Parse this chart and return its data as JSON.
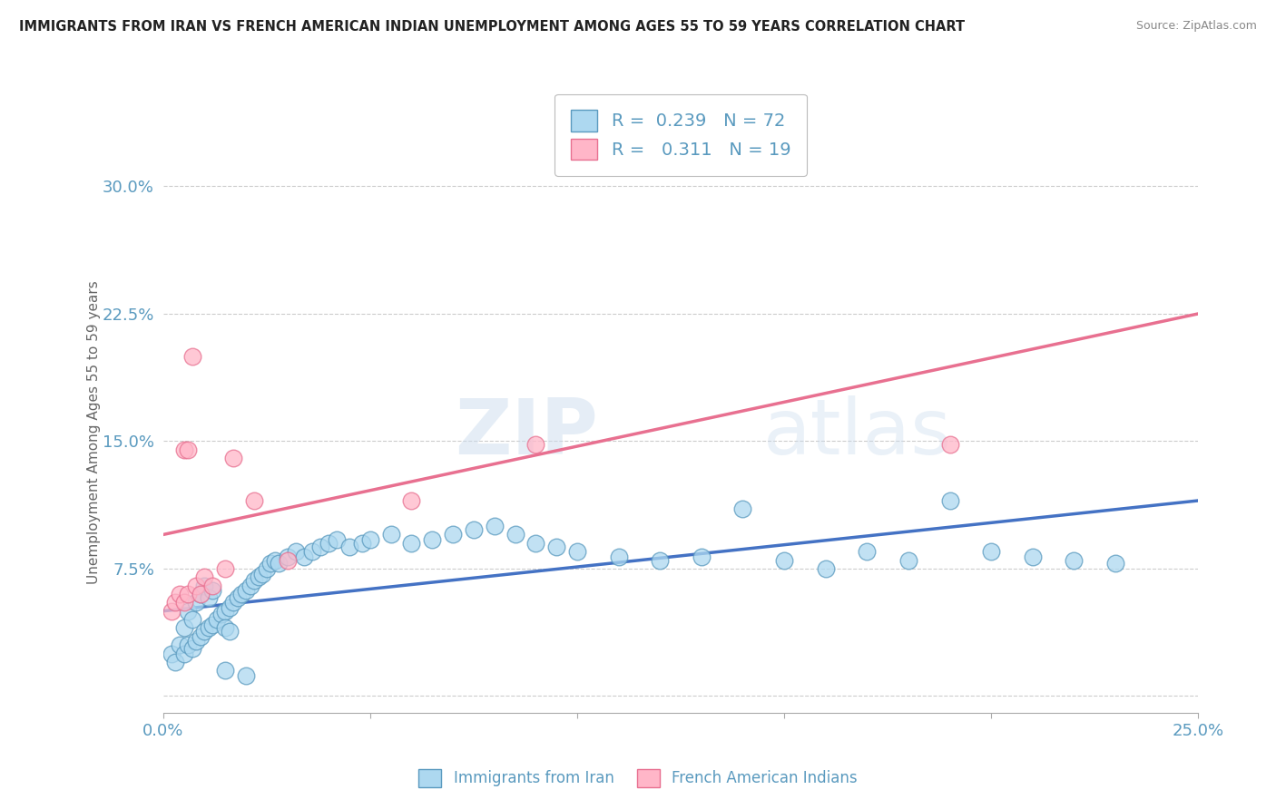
{
  "title": "IMMIGRANTS FROM IRAN VS FRENCH AMERICAN INDIAN UNEMPLOYMENT AMONG AGES 55 TO 59 YEARS CORRELATION CHART",
  "source": "Source: ZipAtlas.com",
  "ylabel": "Unemployment Among Ages 55 to 59 years",
  "xlim": [
    0.0,
    0.25
  ],
  "ylim": [
    -0.01,
    0.32
  ],
  "xticks": [
    0.0,
    0.05,
    0.1,
    0.15,
    0.2,
    0.25
  ],
  "xticklabels": [
    "0.0%",
    "",
    "",
    "",
    "",
    "25.0%"
  ],
  "yticks": [
    0.0,
    0.075,
    0.15,
    0.225,
    0.3
  ],
  "yticklabels": [
    "",
    "7.5%",
    "15.0%",
    "22.5%",
    "30.0%"
  ],
  "blue_R": "0.239",
  "blue_N": "72",
  "pink_R": "0.311",
  "pink_N": "19",
  "blue_color": "#ADD8F0",
  "pink_color": "#FFB6C8",
  "blue_edge": "#5A9ABF",
  "pink_edge": "#E87090",
  "line_blue": "#4472C4",
  "line_pink": "#E87090",
  "watermark_zip": "ZIP",
  "watermark_atlas": "atlas",
  "blue_scatter_x": [
    0.002,
    0.003,
    0.004,
    0.005,
    0.005,
    0.006,
    0.006,
    0.007,
    0.007,
    0.008,
    0.008,
    0.009,
    0.009,
    0.01,
    0.01,
    0.011,
    0.011,
    0.012,
    0.012,
    0.013,
    0.014,
    0.015,
    0.015,
    0.016,
    0.016,
    0.017,
    0.018,
    0.019,
    0.02,
    0.021,
    0.022,
    0.023,
    0.024,
    0.025,
    0.026,
    0.027,
    0.028,
    0.03,
    0.032,
    0.034,
    0.036,
    0.038,
    0.04,
    0.042,
    0.045,
    0.048,
    0.05,
    0.055,
    0.06,
    0.065,
    0.07,
    0.075,
    0.08,
    0.085,
    0.09,
    0.095,
    0.1,
    0.11,
    0.12,
    0.13,
    0.14,
    0.15,
    0.16,
    0.17,
    0.18,
    0.19,
    0.2,
    0.21,
    0.22,
    0.23,
    0.015,
    0.02
  ],
  "blue_scatter_y": [
    0.025,
    0.02,
    0.03,
    0.025,
    0.04,
    0.03,
    0.05,
    0.028,
    0.045,
    0.032,
    0.055,
    0.035,
    0.06,
    0.038,
    0.065,
    0.04,
    0.058,
    0.042,
    0.062,
    0.045,
    0.048,
    0.05,
    0.04,
    0.052,
    0.038,
    0.055,
    0.058,
    0.06,
    0.062,
    0.065,
    0.068,
    0.07,
    0.072,
    0.075,
    0.078,
    0.08,
    0.078,
    0.082,
    0.085,
    0.082,
    0.085,
    0.088,
    0.09,
    0.092,
    0.088,
    0.09,
    0.092,
    0.095,
    0.09,
    0.092,
    0.095,
    0.098,
    0.1,
    0.095,
    0.09,
    0.088,
    0.085,
    0.082,
    0.08,
    0.082,
    0.11,
    0.08,
    0.075,
    0.085,
    0.08,
    0.115,
    0.085,
    0.082,
    0.08,
    0.078,
    0.015,
    0.012
  ],
  "pink_scatter_x": [
    0.002,
    0.003,
    0.004,
    0.005,
    0.005,
    0.006,
    0.006,
    0.007,
    0.008,
    0.009,
    0.01,
    0.012,
    0.015,
    0.017,
    0.022,
    0.03,
    0.06,
    0.09,
    0.19
  ],
  "pink_scatter_y": [
    0.05,
    0.055,
    0.06,
    0.055,
    0.145,
    0.06,
    0.145,
    0.2,
    0.065,
    0.06,
    0.07,
    0.065,
    0.075,
    0.14,
    0.115,
    0.08,
    0.115,
    0.148,
    0.148
  ],
  "blue_line_x": [
    0.0,
    0.25
  ],
  "blue_line_y": [
    0.05,
    0.115
  ],
  "pink_line_x": [
    0.0,
    0.25
  ],
  "pink_line_y": [
    0.095,
    0.225
  ],
  "grid_color": "#CCCCCC",
  "bg_color": "#FFFFFF"
}
